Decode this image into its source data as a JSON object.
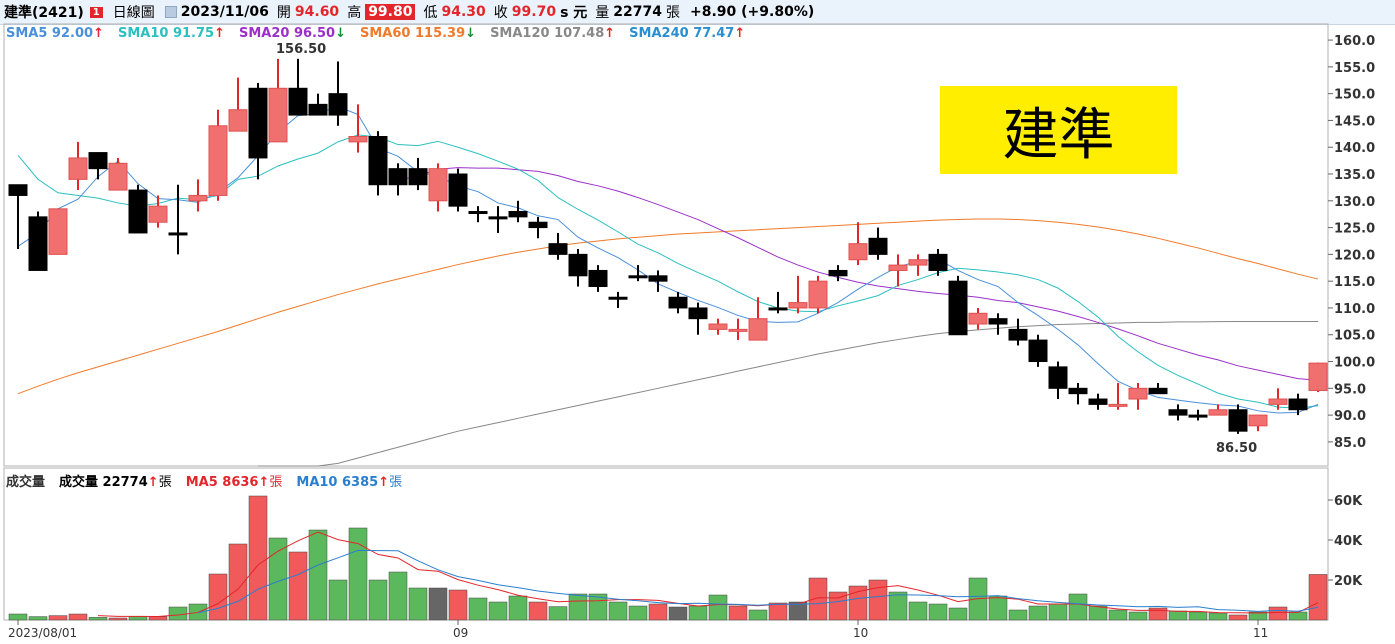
{
  "header": {
    "name": "建準(2421)",
    "badge": "1",
    "period": "日線圖",
    "date": "2023/11/06",
    "open_label": "開",
    "open": "94.60",
    "high_label": "高",
    "high": "99.80",
    "low_label": "低",
    "low": "94.30",
    "close_label": "收",
    "close": "99.70",
    "unit_label": "s 元",
    "vol_label": "量",
    "vol": "22774",
    "vol_unit": "張",
    "change": "+8.90 (+9.80%)"
  },
  "sma_legend": [
    {
      "text": "SMA5 92.00",
      "arrow": "↑",
      "color": "#4a90d9",
      "arrow_color": "#e3262b"
    },
    {
      "text": "SMA10 91.75",
      "arrow": "↑",
      "color": "#2bbfc0",
      "arrow_color": "#e3262b"
    },
    {
      "text": "SMA20 96.50",
      "arrow": "↓",
      "color": "#9b30c9",
      "arrow_color": "#1a8f2e"
    },
    {
      "text": "SMA60 115.39",
      "arrow": "↓",
      "color": "#f07a2a",
      "arrow_color": "#1a8f2e"
    },
    {
      "text": "SMA120 107.48",
      "arrow": "↑",
      "color": "#888888",
      "arrow_color": "#e3262b"
    },
    {
      "text": "SMA240 77.47",
      "arrow": "↑",
      "color": "#2a8fd0",
      "arrow_color": "#e3262b"
    }
  ],
  "vol_legend": [
    {
      "text": "成交量",
      "arrow": "",
      "unit": "",
      "color": "#333333"
    },
    {
      "text": "成交量 22774",
      "arrow": "↑",
      "unit": "張",
      "color": "#000000"
    },
    {
      "text": "MA5 8636",
      "arrow": "↑",
      "unit": "張",
      "color": "#e3262b"
    },
    {
      "text": "MA10 6385",
      "arrow": "↑",
      "unit": "張",
      "color": "#2a7fd0"
    }
  ],
  "banner": "建準",
  "colors": {
    "up": "#f07070",
    "down": "#000000",
    "vol_up": "#f05a5a",
    "vol_down": "#5cb85c",
    "vol_flat": "#666666"
  },
  "chart_data": {
    "type": "candlestick",
    "price_axis": {
      "ticks": [
        85.0,
        90.0,
        95.0,
        100.0,
        105.0,
        110.0,
        115.0,
        120.0,
        125.0,
        130.0,
        135.0,
        140.0,
        145.0,
        150.0,
        155.0,
        160.0
      ],
      "range": [
        80.5,
        163
      ]
    },
    "volume_axis": {
      "ticks": [
        "20K",
        "40K",
        "60K"
      ],
      "range": [
        0,
        72000
      ]
    },
    "x_labels": [
      {
        "label": "2023/08/01",
        "index": 0
      },
      {
        "label": "09",
        "index": 22
      },
      {
        "label": "10",
        "index": 42
      },
      {
        "label": "11",
        "index": 62
      }
    ],
    "annotations": [
      {
        "text": "156.50",
        "index": 14,
        "value": 156.5,
        "pos": "above"
      },
      {
        "text": "86.50",
        "index": 61,
        "value": 86.5,
        "pos": "below"
      }
    ],
    "candles": [
      [
        133,
        133,
        121,
        131,
        1
      ],
      [
        127,
        128,
        117,
        117,
        1
      ],
      [
        120,
        128.5,
        120,
        128.5,
        0
      ],
      [
        134,
        141,
        132,
        138,
        0
      ],
      [
        139,
        139,
        134,
        136,
        1
      ],
      [
        132,
        138,
        132,
        137,
        0
      ],
      [
        132,
        133,
        124,
        124,
        1
      ],
      [
        126,
        131,
        125,
        129,
        0
      ],
      [
        124,
        133,
        120,
        124,
        1
      ],
      [
        130,
        134,
        128,
        131,
        0
      ],
      [
        131,
        147,
        130,
        144,
        0
      ],
      [
        143,
        153,
        143,
        147,
        0
      ],
      [
        151,
        152,
        134,
        138,
        1
      ],
      [
        141,
        156.5,
        141,
        151,
        0
      ],
      [
        151,
        156.5,
        146,
        146,
        1
      ],
      [
        148,
        150,
        146,
        146,
        1
      ],
      [
        150,
        156,
        144,
        146,
        1
      ],
      [
        141,
        148,
        139,
        142,
        0
      ],
      [
        142,
        143,
        131,
        133,
        1
      ],
      [
        136,
        137,
        131,
        133,
        1
      ],
      [
        136,
        138,
        132,
        133,
        1
      ],
      [
        136,
        137,
        128,
        130,
        0
      ],
      [
        135,
        136,
        128,
        129,
        1
      ],
      [
        128,
        129,
        126,
        128,
        1
      ],
      [
        127,
        129,
        124,
        127,
        1
      ],
      [
        128,
        130,
        126,
        127,
        1
      ],
      [
        126,
        127,
        123,
        125,
        1
      ],
      [
        122,
        124,
        119,
        120,
        1
      ],
      [
        120,
        121,
        114,
        116,
        1
      ],
      [
        117,
        118,
        113,
        114,
        1
      ],
      [
        112,
        113,
        110,
        112,
        1
      ],
      [
        116,
        118,
        115,
        116,
        1
      ],
      [
        116,
        117,
        113,
        115,
        1
      ],
      [
        112,
        113,
        109,
        110,
        1
      ],
      [
        110,
        111,
        105,
        108,
        1
      ],
      [
        106,
        108,
        105,
        107,
        0
      ],
      [
        106,
        108,
        104,
        106,
        0
      ],
      [
        104,
        112,
        104,
        108,
        0
      ],
      [
        110,
        113,
        109,
        110,
        1
      ],
      [
        110,
        116,
        109,
        111,
        0
      ],
      [
        110,
        116,
        109,
        115,
        0
      ],
      [
        116,
        118,
        115,
        117,
        1
      ],
      [
        119,
        126,
        118,
        122,
        0
      ],
      [
        123,
        125,
        119,
        120,
        1
      ],
      [
        118,
        120,
        114,
        117,
        0
      ],
      [
        118,
        120,
        116,
        119,
        0
      ],
      [
        120,
        121,
        116,
        117,
        1
      ],
      [
        115,
        116,
        105,
        105,
        1
      ],
      [
        107,
        110,
        106,
        109,
        0
      ],
      [
        108,
        109,
        105,
        107,
        1
      ],
      [
        106,
        108,
        103,
        104,
        1
      ],
      [
        104,
        105,
        99,
        100,
        1
      ],
      [
        99,
        100,
        93,
        95,
        1
      ],
      [
        95,
        96,
        92,
        94,
        1
      ],
      [
        93,
        94,
        91,
        92,
        1
      ],
      [
        92,
        96,
        91,
        92,
        0
      ],
      [
        93,
        96,
        91,
        95,
        0
      ],
      [
        95,
        96,
        94,
        94,
        1
      ],
      [
        91,
        92,
        89,
        90,
        1
      ],
      [
        90,
        91,
        89,
        90,
        1
      ],
      [
        90,
        92,
        90,
        91,
        0
      ],
      [
        91,
        92,
        86.5,
        87,
        1
      ],
      [
        88,
        90,
        87,
        90,
        0
      ],
      [
        92,
        95,
        91,
        93,
        0
      ],
      [
        93,
        94,
        90,
        91,
        1
      ],
      [
        94.6,
        99.8,
        94.3,
        99.7,
        0
      ]
    ],
    "volume": [
      [
        3000,
        0
      ],
      [
        1700,
        0
      ],
      [
        2200,
        1
      ],
      [
        3000,
        1
      ],
      [
        1300,
        0
      ],
      [
        1000,
        1
      ],
      [
        1800,
        0
      ],
      [
        1600,
        1
      ],
      [
        6500,
        0
      ],
      [
        8000,
        0
      ],
      [
        23000,
        1
      ],
      [
        38000,
        1
      ],
      [
        62000,
        1
      ],
      [
        41000,
        0
      ],
      [
        34000,
        1
      ],
      [
        45000,
        0
      ],
      [
        20000,
        0
      ],
      [
        46000,
        0
      ],
      [
        20000,
        0
      ],
      [
        24000,
        0
      ],
      [
        16000,
        0
      ],
      [
        16000,
        2
      ],
      [
        15000,
        1
      ],
      [
        11000,
        0
      ],
      [
        9000,
        0
      ],
      [
        12000,
        0
      ],
      [
        9000,
        1
      ],
      [
        6700,
        0
      ],
      [
        13000,
        0
      ],
      [
        13000,
        0
      ],
      [
        9000,
        0
      ],
      [
        7000,
        0
      ],
      [
        8000,
        1
      ],
      [
        6500,
        2
      ],
      [
        7000,
        0
      ],
      [
        12500,
        0
      ],
      [
        7000,
        1
      ],
      [
        5000,
        0
      ],
      [
        8500,
        1
      ],
      [
        9000,
        2
      ],
      [
        21000,
        1
      ],
      [
        14000,
        1
      ],
      [
        17000,
        1
      ],
      [
        20000,
        1
      ],
      [
        14000,
        0
      ],
      [
        9000,
        0
      ],
      [
        8000,
        0
      ],
      [
        6000,
        0
      ],
      [
        21000,
        0
      ],
      [
        12000,
        0
      ],
      [
        5000,
        0
      ],
      [
        7000,
        0
      ],
      [
        8000,
        0
      ],
      [
        13000,
        0
      ],
      [
        7000,
        0
      ],
      [
        5000,
        0
      ],
      [
        4000,
        0
      ],
      [
        6000,
        1
      ],
      [
        4500,
        0
      ],
      [
        4000,
        0
      ],
      [
        3500,
        0
      ],
      [
        2500,
        1
      ],
      [
        4000,
        0
      ],
      [
        6500,
        1
      ],
      [
        4000,
        0
      ],
      [
        22774,
        1
      ]
    ],
    "sma5": [
      121.5,
      124,
      128.5,
      130.3,
      134.5,
      137.4,
      133.2,
      130.4,
      130.2,
      129.7,
      131.6,
      134.3,
      138.4,
      142.8,
      145.9,
      146.3,
      147.6,
      146.1,
      139.8,
      138.3,
      135.4,
      134.6,
      132.8,
      131.7,
      129.6,
      128.7,
      127.2,
      126.5,
      123.2,
      121.2,
      119.4,
      117.1,
      114.5,
      112.9,
      111.4,
      110.1,
      108.6,
      107.5,
      107.3,
      107.4,
      109,
      111,
      113.5,
      115.7,
      117.7,
      118.7,
      119.1,
      117,
      115.3,
      114,
      111,
      108.6,
      106,
      103.1,
      99.6,
      96.3,
      94.6,
      93.3,
      92.8,
      92.3,
      91.9,
      91.7,
      90.8,
      90.4,
      90.5,
      92
    ],
    "sma10": [
      138.5,
      134,
      131.5,
      131,
      130.5,
      129.6,
      129,
      129.5,
      130.5,
      130.2,
      131,
      134,
      134.6,
      136.5,
      137.8,
      138.9,
      141,
      142.3,
      141.9,
      140.5,
      140.3,
      141.1,
      140,
      138.8,
      137.4,
      135.9,
      133.8,
      130.6,
      128.4,
      126.4,
      124.2,
      121.9,
      120.3,
      118.3,
      116.6,
      115,
      113,
      111.2,
      110,
      109.4,
      109.3,
      110.4,
      111.3,
      112.3,
      114.2,
      115.3,
      116.6,
      117.4,
      117.1,
      116.7,
      116.2,
      115.3,
      113.7,
      111.2,
      108.3,
      104.7,
      101.8,
      99.3,
      97.4,
      95.8,
      94.1,
      93,
      92.4,
      91.5,
      91.3,
      91.75
    ],
    "sma20": [
      null,
      null,
      null,
      null,
      null,
      null,
      null,
      null,
      null,
      null,
      null,
      null,
      null,
      null,
      null,
      null,
      null,
      null,
      null,
      133.8,
      134.7,
      135.9,
      136.2,
      136.1,
      136.1,
      135.8,
      135.5,
      134.7,
      133.6,
      132.8,
      131.8,
      130.6,
      129.3,
      127.9,
      126.5,
      124.8,
      123.1,
      121.3,
      119.5,
      118,
      116.7,
      115.7,
      114.8,
      114.1,
      113.6,
      113.1,
      112.7,
      112.4,
      112,
      111.4,
      111,
      110.2,
      109.4,
      108.4,
      107.3,
      106.1,
      104.8,
      103.4,
      102.3,
      101.2,
      100.3,
      99.2,
      98.4,
      97.6,
      96.8,
      96.5
    ],
    "sma60": [
      94,
      95.4,
      96.7,
      97.9,
      99,
      100.1,
      101.2,
      102.3,
      103.4,
      104.5,
      105.6,
      106.8,
      108,
      109.2,
      110.3,
      111.4,
      112.5,
      113.5,
      114.5,
      115.4,
      116.3,
      117.2,
      118.1,
      118.9,
      119.7,
      120.4,
      121,
      121.6,
      122.1,
      122.5,
      122.9,
      123.2,
      123.5,
      123.8,
      124,
      124.2,
      124.4,
      124.6,
      124.8,
      125,
      125.2,
      125.4,
      125.6,
      125.8,
      126,
      126.2,
      126.4,
      126.5,
      126.6,
      126.6,
      126.5,
      126.3,
      126,
      125.6,
      125.1,
      124.5,
      123.8,
      123,
      122.1,
      121.2,
      120.2,
      119.2,
      118.3,
      117.3,
      116.3,
      115.39
    ],
    "sma120": [
      null,
      null,
      null,
      null,
      null,
      null,
      null,
      null,
      null,
      null,
      null,
      null,
      77,
      78,
      79,
      80,
      81,
      82,
      83,
      84,
      85,
      86,
      87,
      87.8,
      88.6,
      89.4,
      90.2,
      91,
      91.8,
      92.6,
      93.4,
      94.2,
      95,
      95.8,
      96.6,
      97.4,
      98.2,
      99,
      99.8,
      100.6,
      101.4,
      102.1,
      102.8,
      103.5,
      104.1,
      104.7,
      105.2,
      105.6,
      105.9,
      106.2,
      106.5,
      106.7,
      106.9,
      107,
      107.1,
      107.2,
      107.3,
      107.3,
      107.4,
      107.4,
      107.45,
      107.46,
      107.47,
      107.47,
      107.48,
      107.48
    ],
    "vol_ma5": [
      null,
      null,
      null,
      null,
      2200,
      1840,
      1800,
      1720,
      2500,
      3780,
      8180,
      15420,
      27500,
      34400,
      39600,
      44000,
      40200,
      38200,
      32800,
      31000,
      25200,
      24400,
      20200,
      17400,
      15200,
      12400,
      10600,
      9100,
      9500,
      9600,
      10200,
      10200,
      9800,
      8300,
      7000,
      7700,
      7700,
      7100,
      7900,
      8000,
      11100,
      11000,
      14200,
      16200,
      17200,
      15000,
      12400,
      9200,
      10700,
      11200,
      10400,
      8000,
      8000,
      8000,
      6600,
      5500,
      4800,
      4900,
      4300,
      4300,
      3700,
      3600,
      3500,
      3800,
      3800,
      8636
    ],
    "vol_ma10": [
      null,
      null,
      null,
      null,
      null,
      null,
      null,
      null,
      null,
      3600,
      5800,
      9300,
      15400,
      19300,
      22700,
      27500,
      31100,
      34800,
      34700,
      34600,
      29600,
      25100,
      21700,
      19800,
      17600,
      16200,
      14500,
      13300,
      12300,
      11500,
      10400,
      9600,
      8700,
      8200,
      8400,
      8000,
      7800,
      7400,
      7900,
      7900,
      8200,
      9200,
      10800,
      11700,
      12600,
      12500,
      12200,
      11600,
      11800,
      12200,
      10700,
      9600,
      8800,
      8100,
      7500,
      7100,
      6600,
      6800,
      6300,
      6600,
      5200,
      4900,
      4300,
      4800,
      4400,
      6385
    ]
  }
}
